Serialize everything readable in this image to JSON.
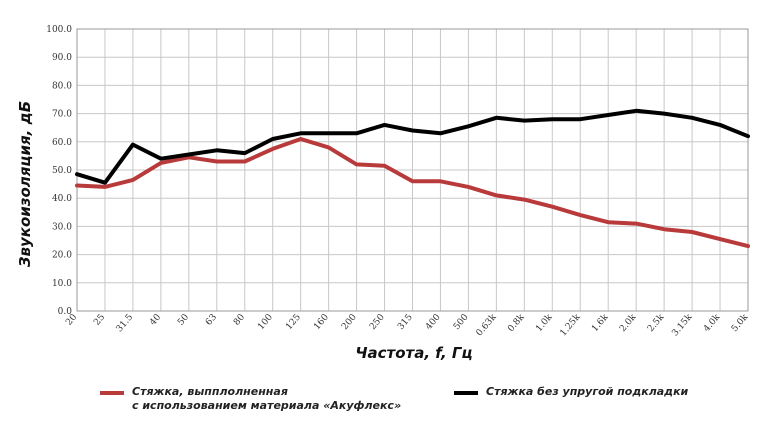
{
  "chart_data": {
    "type": "line",
    "xlabel": "Частота, f, Гц",
    "ylabel": "Звукоизоляция, дБ",
    "ylim": [
      0,
      100
    ],
    "yticks": [
      "0.0",
      "10.0",
      "20.0",
      "30.0",
      "40.0",
      "50.0",
      "60.0",
      "70.0",
      "80.0",
      "90.0",
      "100.0"
    ],
    "grid": true,
    "legend_position": "bottom",
    "categories": [
      "20",
      "25",
      "31.5",
      "40",
      "50",
      "63",
      "80",
      "100",
      "125",
      "160",
      "200",
      "250",
      "315",
      "400",
      "500",
      "0.63k",
      "0.8k",
      "1.0k",
      "1.25k",
      "1.6k",
      "2.0k",
      "2.5k",
      "3.15k",
      "4.0k",
      "5.0k"
    ],
    "series": [
      {
        "name_lines": [
          "Стяжка, выпплолненная",
          "с использованием материала «Акуфлекс»"
        ],
        "color": "#b83a3a",
        "values": [
          44.5,
          44,
          46.5,
          52.5,
          54.5,
          53,
          53,
          57.5,
          61,
          58,
          52,
          51.5,
          46,
          46,
          44,
          41,
          39.5,
          37,
          34,
          31.5,
          31,
          29,
          28,
          25.5,
          23
        ]
      },
      {
        "name_lines": [
          "Стяжка без упругой подкладки"
        ],
        "color": "#000000",
        "values": [
          48.5,
          45.5,
          59,
          54,
          55.5,
          57,
          56,
          61,
          63,
          63,
          63,
          66,
          64,
          63,
          65.5,
          68.5,
          67.5,
          68,
          68,
          69.5,
          71,
          70,
          68.5,
          66,
          62
        ]
      }
    ]
  }
}
